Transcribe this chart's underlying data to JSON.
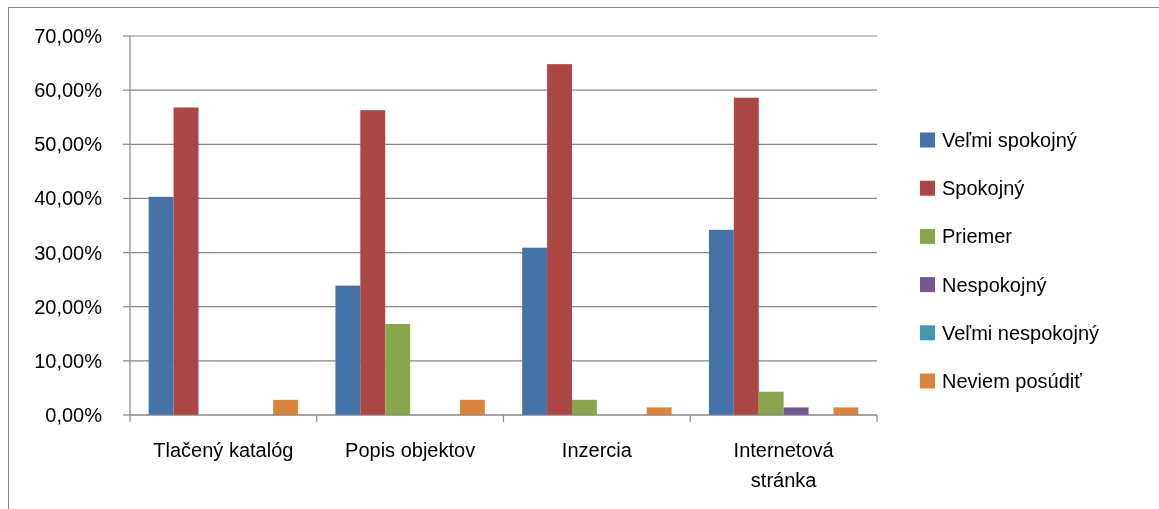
{
  "chart_data": {
    "type": "bar",
    "categories": [
      "Tlačený katalóg",
      "Popis objektov",
      "Inzercia",
      "Internetová stránka"
    ],
    "series": [
      {
        "name": "Veľmi spokojný",
        "color": "#4572a7",
        "values": [
          40.3,
          23.9,
          30.9,
          34.2
        ]
      },
      {
        "name": "Spokojný",
        "color": "#aa4643",
        "values": [
          56.8,
          56.3,
          64.8,
          58.6
        ]
      },
      {
        "name": "Priemer",
        "color": "#89a54e",
        "values": [
          0,
          16.8,
          2.8,
          4.3
        ]
      },
      {
        "name": "Nespokojný",
        "color": "#71588f",
        "values": [
          0,
          0,
          0,
          1.4
        ]
      },
      {
        "name": "Veľmi nespokojný",
        "color": "#4198af",
        "values": [
          0,
          0,
          0,
          0
        ]
      },
      {
        "name": "Neviem posúdiť",
        "color": "#db843d",
        "values": [
          2.8,
          2.8,
          1.4,
          1.4
        ]
      }
    ],
    "ylim": [
      0,
      70
    ],
    "yticks": [
      {
        "value": 0,
        "label": "0,00%"
      },
      {
        "value": 10,
        "label": "10,00%"
      },
      {
        "value": 20,
        "label": "20,00%"
      },
      {
        "value": 30,
        "label": "30,00%"
      },
      {
        "value": 40,
        "label": "40,00%"
      },
      {
        "value": 50,
        "label": "50,00%"
      },
      {
        "value": 60,
        "label": "60,00%"
      },
      {
        "value": 70,
        "label": "70,00%"
      }
    ],
    "grid": "y",
    "legend": "right"
  }
}
